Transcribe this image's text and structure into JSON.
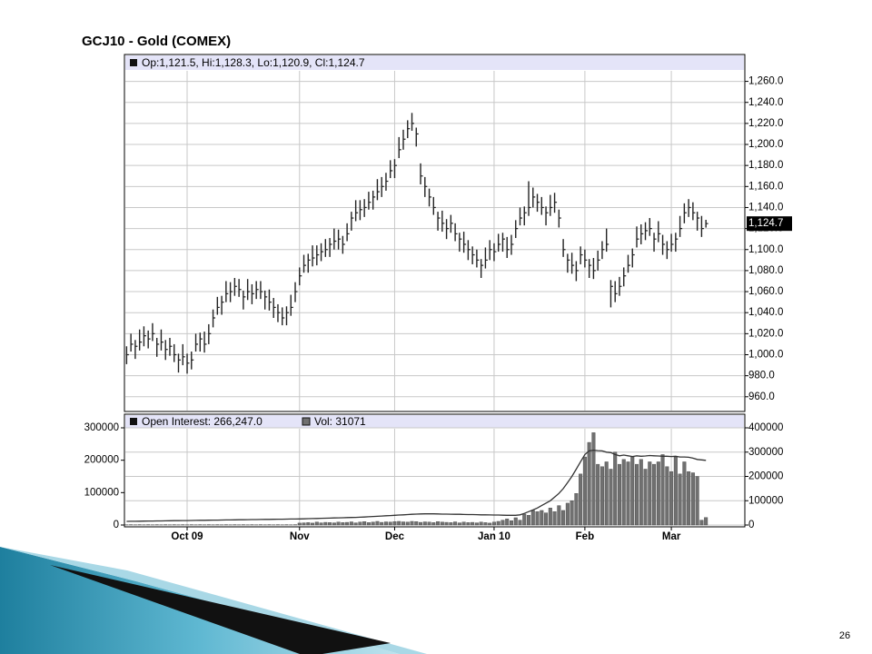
{
  "chart_data": [
    {
      "type": "ohlc",
      "title": "GCJ10 - Gold (COMEX)",
      "legend": "Op:1,121.5, Hi:1,128.3, Lo:1,120.9, Cl:1,124.7",
      "color": "#222222",
      "high": [
        1008,
        1020,
        1014,
        1024,
        1027,
        1023,
        1030,
        1016,
        1024,
        1014,
        1016,
        1010,
        1001,
        1010,
        1001,
        1003,
        1020,
        1021,
        1022,
        1029,
        1043,
        1055,
        1056,
        1070,
        1069,
        1073,
        1072,
        1061,
        1072,
        1067,
        1070,
        1070,
        1061,
        1062,
        1054,
        1048,
        1045,
        1046,
        1057,
        1069,
        1083,
        1095,
        1096,
        1104,
        1104,
        1106,
        1110,
        1111,
        1120,
        1119,
        1113,
        1125,
        1136,
        1147,
        1147,
        1148,
        1155,
        1156,
        1167,
        1169,
        1173,
        1185,
        1186,
        1207,
        1214,
        1223,
        1230,
        1216,
        1182,
        1169,
        1158,
        1150,
        1136,
        1137,
        1129,
        1133,
        1125,
        1116,
        1117,
        1109,
        1103,
        1100,
        1091,
        1102,
        1109,
        1106,
        1115,
        1116,
        1112,
        1114,
        1128,
        1140,
        1141,
        1165,
        1159,
        1153,
        1150,
        1141,
        1152,
        1154,
        1138,
        1110,
        1096,
        1097,
        1089,
        1103,
        1100,
        1091,
        1092,
        1099,
        1108,
        1120,
        1071,
        1070,
        1074,
        1083,
        1095,
        1101,
        1122,
        1124,
        1126,
        1130,
        1116,
        1127,
        1114,
        1108,
        1115,
        1116,
        1132,
        1144,
        1148,
        1145,
        1136,
        1132,
        1128.3
      ],
      "low": [
        991,
        1003,
        996,
        1004,
        1008,
        1006,
        1013,
        998,
        1004,
        995,
        999,
        993,
        983,
        990,
        982,
        986,
        1003,
        1003,
        1002,
        1010,
        1026,
        1038,
        1038,
        1050,
        1050,
        1056,
        1055,
        1043,
        1052,
        1048,
        1053,
        1053,
        1043,
        1042,
        1035,
        1031,
        1028,
        1028,
        1037,
        1050,
        1066,
        1078,
        1078,
        1084,
        1085,
        1089,
        1093,
        1093,
        1100,
        1100,
        1096,
        1108,
        1118,
        1127,
        1128,
        1131,
        1138,
        1138,
        1147,
        1150,
        1156,
        1168,
        1168,
        1187,
        1195,
        1206,
        1213,
        1198,
        1162,
        1150,
        1141,
        1133,
        1118,
        1117,
        1110,
        1116,
        1108,
        1098,
        1097,
        1090,
        1086,
        1083,
        1073,
        1082,
        1090,
        1089,
        1098,
        1098,
        1092,
        1095,
        1111,
        1123,
        1123,
        1132,
        1140,
        1136,
        1133,
        1123,
        1132,
        1135,
        1121,
        1093,
        1078,
        1077,
        1070,
        1086,
        1083,
        1073,
        1072,
        1080,
        1091,
        1098,
        1045,
        1050,
        1056,
        1065,
        1078,
        1083,
        1102,
        1105,
        1109,
        1113,
        1098,
        1107,
        1095,
        1091,
        1098,
        1098,
        1112,
        1125,
        1131,
        1128,
        1118,
        1112,
        1120.9
      ],
      "close": [
        1000,
        1010,
        1008,
        1012,
        1018,
        1015,
        1020,
        1010,
        1012,
        1005,
        1008,
        1000,
        995,
        998,
        992,
        995,
        1010,
        1015,
        1010,
        1020,
        1035,
        1045,
        1050,
        1058,
        1060,
        1065,
        1062,
        1055,
        1060,
        1058,
        1062,
        1060,
        1055,
        1050,
        1045,
        1040,
        1035,
        1040,
        1045,
        1060,
        1075,
        1085,
        1090,
        1092,
        1095,
        1098,
        1100,
        1105,
        1108,
        1110,
        1105,
        1115,
        1130,
        1135,
        1138,
        1140,
        1145,
        1150,
        1155,
        1160,
        1165,
        1175,
        1180,
        1195,
        1205,
        1215,
        1220,
        1210,
        1170,
        1160,
        1150,
        1140,
        1130,
        1125,
        1120,
        1125,
        1115,
        1110,
        1105,
        1100,
        1095,
        1090,
        1085,
        1090,
        1100,
        1098,
        1105,
        1110,
        1100,
        1105,
        1120,
        1130,
        1135,
        1140,
        1150,
        1145,
        1140,
        1135,
        1140,
        1145,
        1130,
        1100,
        1090,
        1085,
        1080,
        1095,
        1090,
        1085,
        1080,
        1090,
        1100,
        1105,
        1065,
        1058,
        1065,
        1075,
        1085,
        1095,
        1110,
        1115,
        1118,
        1120,
        1110,
        1115,
        1105,
        1100,
        1105,
        1110,
        1120,
        1135,
        1140,
        1135,
        1130,
        1120,
        1124.7
      ],
      "last_close_label": "1,124.7",
      "ylim": [
        946,
        1270
      ],
      "yticks": [
        {
          "value": 960,
          "label": "960.0"
        },
        {
          "value": 980,
          "label": "980.0"
        },
        {
          "value": 1000,
          "label": "1,000.0"
        },
        {
          "value": 1020,
          "label": "1,020.0"
        },
        {
          "value": 1040,
          "label": "1,040.0"
        },
        {
          "value": 1060,
          "label": "1,060.0"
        },
        {
          "value": 1080,
          "label": "1,080.0"
        },
        {
          "value": 1100,
          "label": "1,100.0"
        },
        {
          "value": 1120,
          "label": "1,120.0"
        },
        {
          "value": 1140,
          "label": "1,140.0"
        },
        {
          "value": 1160,
          "label": "1,160.0"
        },
        {
          "value": 1180,
          "label": "1,180.0"
        },
        {
          "value": 1200,
          "label": "1,200.0"
        },
        {
          "value": 1220,
          "label": "1,220.0"
        },
        {
          "value": 1240,
          "label": "1,240.0"
        },
        {
          "value": 1260,
          "label": "1,260.0"
        }
      ],
      "grid": true
    },
    {
      "type": "bar_line",
      "xlim": [
        -0.5,
        143
      ],
      "xticks": [
        {
          "value": 14,
          "label": "Oct 09"
        },
        {
          "value": 40,
          "label": "Nov"
        },
        {
          "value": 62,
          "label": "Dec"
        },
        {
          "value": 85,
          "label": "Jan 10"
        },
        {
          "value": 106,
          "label": "Feb"
        },
        {
          "value": 126,
          "label": "Mar"
        }
      ],
      "ylim": [
        0,
        300000
      ],
      "yticks": [
        0,
        100000,
        200000,
        300000
      ],
      "y2lim": [
        0,
        400000
      ],
      "y2ticks": [
        0,
        100000,
        200000,
        300000,
        400000
      ],
      "grid": true,
      "series": [
        {
          "name": "Open Interest: 266,247.0",
          "kind": "line",
          "axis": "y2",
          "color": "#333333",
          "values": [
            15000,
            15200,
            15500,
            15800,
            16000,
            16300,
            16500,
            16800,
            17000,
            17300,
            17500,
            17800,
            18000,
            18300,
            18500,
            18800,
            19000,
            19300,
            19500,
            19800,
            20000,
            20300,
            20500,
            20800,
            21000,
            21300,
            21500,
            21800,
            22000,
            22300,
            22500,
            22800,
            23000,
            23300,
            23500,
            23800,
            24000,
            24300,
            24500,
            24800,
            25000,
            25500,
            26000,
            26500,
            27000,
            27500,
            28000,
            28500,
            29000,
            29500,
            30000,
            30500,
            31000,
            31500,
            32000,
            33000,
            34000,
            35000,
            36000,
            37000,
            38000,
            39000,
            40000,
            41000,
            42000,
            43000,
            44000,
            45000,
            45500,
            46000,
            46000,
            46000,
            45500,
            45000,
            45000,
            44500,
            44000,
            44000,
            43500,
            43000,
            43000,
            42500,
            42000,
            42000,
            41500,
            41000,
            41000,
            40500,
            40000,
            40000,
            40000,
            42000,
            48000,
            55000,
            62000,
            70000,
            80000,
            90000,
            100000,
            115000,
            130000,
            150000,
            175000,
            200000,
            230000,
            260000,
            290000,
            305000,
            308000,
            306000,
            305000,
            300000,
            298000,
            290000,
            285000,
            288000,
            285000,
            282000,
            285000,
            283000,
            284000,
            286000,
            285000,
            284000,
            283000,
            283000,
            282000,
            283000,
            280000,
            280000,
            279000,
            275000,
            270000,
            268000,
            266247
          ]
        },
        {
          "name": "Vol: 31071",
          "kind": "bar",
          "axis": "y2",
          "color": "#707070",
          "values": [
            1000,
            1500,
            1000,
            1500,
            1000,
            1500,
            1000,
            1500,
            1000,
            1500,
            1000,
            1500,
            1000,
            1500,
            1000,
            1500,
            1000,
            1500,
            1000,
            1500,
            1000,
            1500,
            1000,
            1500,
            1000,
            1500,
            1000,
            1500,
            1000,
            1500,
            1000,
            1500,
            1000,
            1500,
            1000,
            1500,
            1000,
            1500,
            1000,
            1500,
            8000,
            9000,
            10000,
            8000,
            12000,
            9000,
            11000,
            10000,
            9000,
            12000,
            10000,
            11000,
            13000,
            9000,
            12000,
            14000,
            10000,
            12000,
            15000,
            11000,
            13000,
            12000,
            14000,
            15000,
            13000,
            12000,
            15000,
            14000,
            11000,
            13000,
            12000,
            10000,
            14000,
            12000,
            11000,
            10000,
            13000,
            9000,
            12000,
            10000,
            11000,
            9000,
            12000,
            10000,
            8000,
            12000,
            15000,
            20000,
            25000,
            18000,
            30000,
            20000,
            45000,
            40000,
            60000,
            55000,
            60000,
            50000,
            70000,
            55000,
            80000,
            60000,
            90000,
            100000,
            130000,
            210000,
            280000,
            340000,
            380000,
            250000,
            240000,
            260000,
            230000,
            300000,
            250000,
            270000,
            260000,
            280000,
            250000,
            270000,
            230000,
            260000,
            250000,
            260000,
            290000,
            240000,
            220000,
            280000,
            210000,
            260000,
            220000,
            215000,
            200000,
            20000,
            31071
          ]
        }
      ]
    },
    {
      "type": "slide",
      "page_number": "26"
    }
  ]
}
